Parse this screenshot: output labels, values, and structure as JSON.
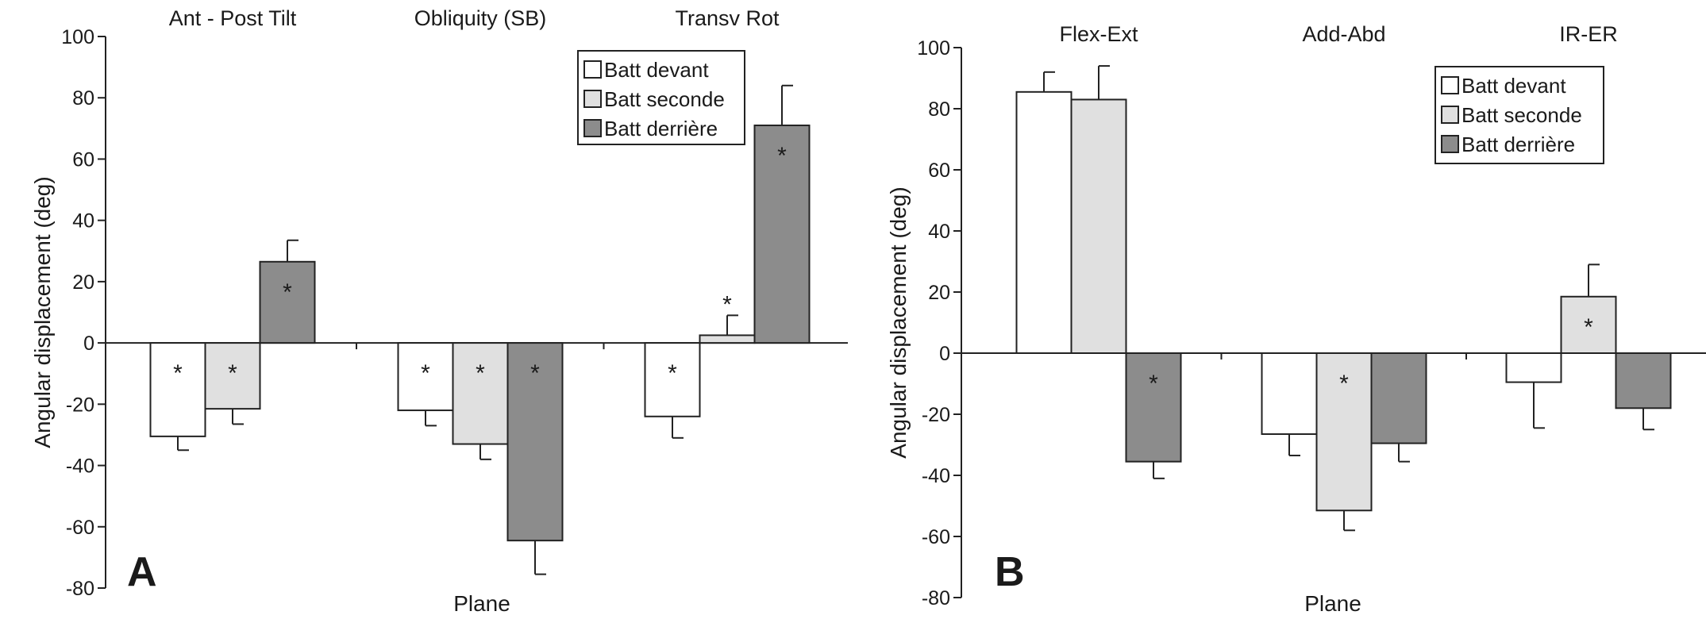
{
  "chart_data": [
    {
      "panel": "A",
      "type": "bar",
      "categories": [
        "Ant - Post Tilt",
        "Obliquity (SB)",
        "Transv Rot"
      ],
      "xlabel": "Plane",
      "ylabel": "Angular displacement (deg)",
      "ylim": [
        -80,
        100
      ],
      "yticks": [
        "100",
        "80",
        "60",
        "40",
        "20",
        "0",
        "-20",
        "-40",
        "-60",
        "-80"
      ],
      "legend_position": "top-right",
      "series": [
        {
          "name": "Batt devant",
          "color": "#ffffff",
          "values": [
            -30.5,
            -22,
            -24
          ],
          "errors": [
            4.5,
            5,
            7
          ],
          "significant": [
            true,
            true,
            true
          ]
        },
        {
          "name": "Batt seconde",
          "color": "#e0e0e0",
          "values": [
            -21.5,
            -33,
            2.5
          ],
          "errors": [
            5,
            5,
            6.5
          ],
          "significant": [
            true,
            true,
            true
          ]
        },
        {
          "name": "Batt derrière",
          "color": "#8c8c8c",
          "values": [
            26.5,
            -64.5,
            71
          ],
          "errors": [
            7,
            11,
            13
          ],
          "significant": [
            true,
            true,
            true
          ]
        }
      ],
      "significance_marker": "*"
    },
    {
      "panel": "B",
      "type": "bar",
      "categories": [
        "Flex-Ext",
        "Add-Abd",
        "IR-ER"
      ],
      "xlabel": "Plane",
      "ylabel": "Angular displacement (deg)",
      "ylim": [
        -80,
        100
      ],
      "yticks": [
        "100",
        "80",
        "60",
        "40",
        "20",
        "0",
        "-20",
        "-40",
        "-60",
        "-80"
      ],
      "legend_position": "top-right",
      "series": [
        {
          "name": "Batt devant",
          "color": "#ffffff",
          "values": [
            85.5,
            -26.5,
            -9.5
          ],
          "errors": [
            6.5,
            7,
            15
          ],
          "significant": [
            false,
            false,
            false
          ]
        },
        {
          "name": "Batt seconde",
          "color": "#e0e0e0",
          "values": [
            83,
            -51.5,
            18.5
          ],
          "errors": [
            11,
            6.5,
            10.5
          ],
          "significant": [
            false,
            true,
            true
          ]
        },
        {
          "name": "Batt derrière",
          "color": "#8c8c8c",
          "values": [
            -35.5,
            -29.5,
            -18
          ],
          "errors": [
            5.5,
            6,
            7
          ],
          "significant": [
            true,
            false,
            false
          ]
        }
      ],
      "significance_marker": "*"
    }
  ]
}
